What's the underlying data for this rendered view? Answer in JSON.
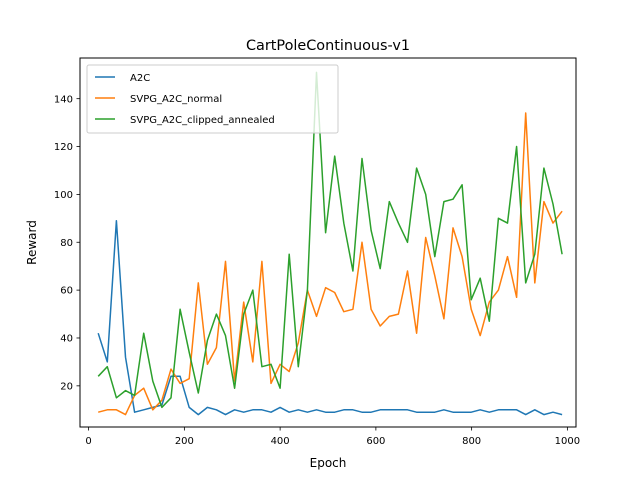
{
  "chart_data": {
    "type": "line",
    "title": "CartPoleContinuous-v1",
    "xlabel": "Epoch",
    "ylabel": "Reward",
    "xlim": [
      -18,
      1018
    ],
    "ylim": [
      2.8,
      157
    ],
    "xticks": [
      0,
      200,
      400,
      600,
      800,
      1000
    ],
    "yticks": [
      20,
      40,
      60,
      80,
      100,
      120,
      140
    ],
    "legend_position": "top-left",
    "grid": false,
    "x": [
      20,
      39,
      58,
      77,
      96,
      115,
      134,
      153,
      172,
      191,
      210,
      229,
      248,
      267,
      286,
      305,
      324,
      343,
      362,
      381,
      400,
      419,
      438,
      457,
      476,
      495,
      514,
      533,
      552,
      571,
      590,
      609,
      628,
      647,
      666,
      685,
      704,
      723,
      742,
      761,
      780,
      799,
      818,
      837,
      856,
      875,
      894,
      913,
      932,
      951,
      970,
      989
    ],
    "series": [
      {
        "name": "A2C",
        "color": "#1f77b4",
        "values": [
          42,
          30,
          89,
          32,
          9,
          10,
          11,
          12,
          24,
          24,
          11,
          8,
          11,
          10,
          8,
          10,
          9,
          10,
          10,
          9,
          11,
          9,
          10,
          9,
          10,
          9,
          9,
          10,
          10,
          9,
          9,
          10,
          10,
          10,
          10,
          9,
          9,
          9,
          10,
          9,
          9,
          9,
          10,
          9,
          10,
          10,
          10,
          8,
          10,
          8,
          9,
          8
        ]
      },
      {
        "name": "SVPG_A2C_normal",
        "color": "#ff7f0e",
        "values": [
          9,
          10,
          10,
          8,
          16,
          19,
          10,
          14,
          27,
          21,
          23,
          63,
          29,
          36,
          72,
          22,
          55,
          30,
          72,
          21,
          29,
          26,
          38,
          60,
          49,
          61,
          59,
          51,
          52,
          80,
          52,
          45,
          49,
          50,
          68,
          42,
          82,
          66,
          48,
          86,
          74,
          52,
          41,
          55,
          60,
          74,
          57,
          134,
          63,
          97,
          88,
          93
        ]
      },
      {
        "name": "SVPG_A2C_clipped_annealed",
        "color": "#2ca02c",
        "values": [
          24,
          28,
          15,
          18,
          16,
          42,
          22,
          11,
          15,
          52,
          34,
          17,
          39,
          50,
          41,
          19,
          50,
          60,
          28,
          29,
          19,
          75,
          28,
          60,
          151,
          84,
          116,
          88,
          68,
          115,
          85,
          69,
          97,
          88,
          80,
          111,
          100,
          74,
          97,
          98,
          104,
          56,
          65,
          47,
          90,
          88,
          120,
          63,
          75,
          111,
          96,
          75
        ]
      }
    ]
  }
}
